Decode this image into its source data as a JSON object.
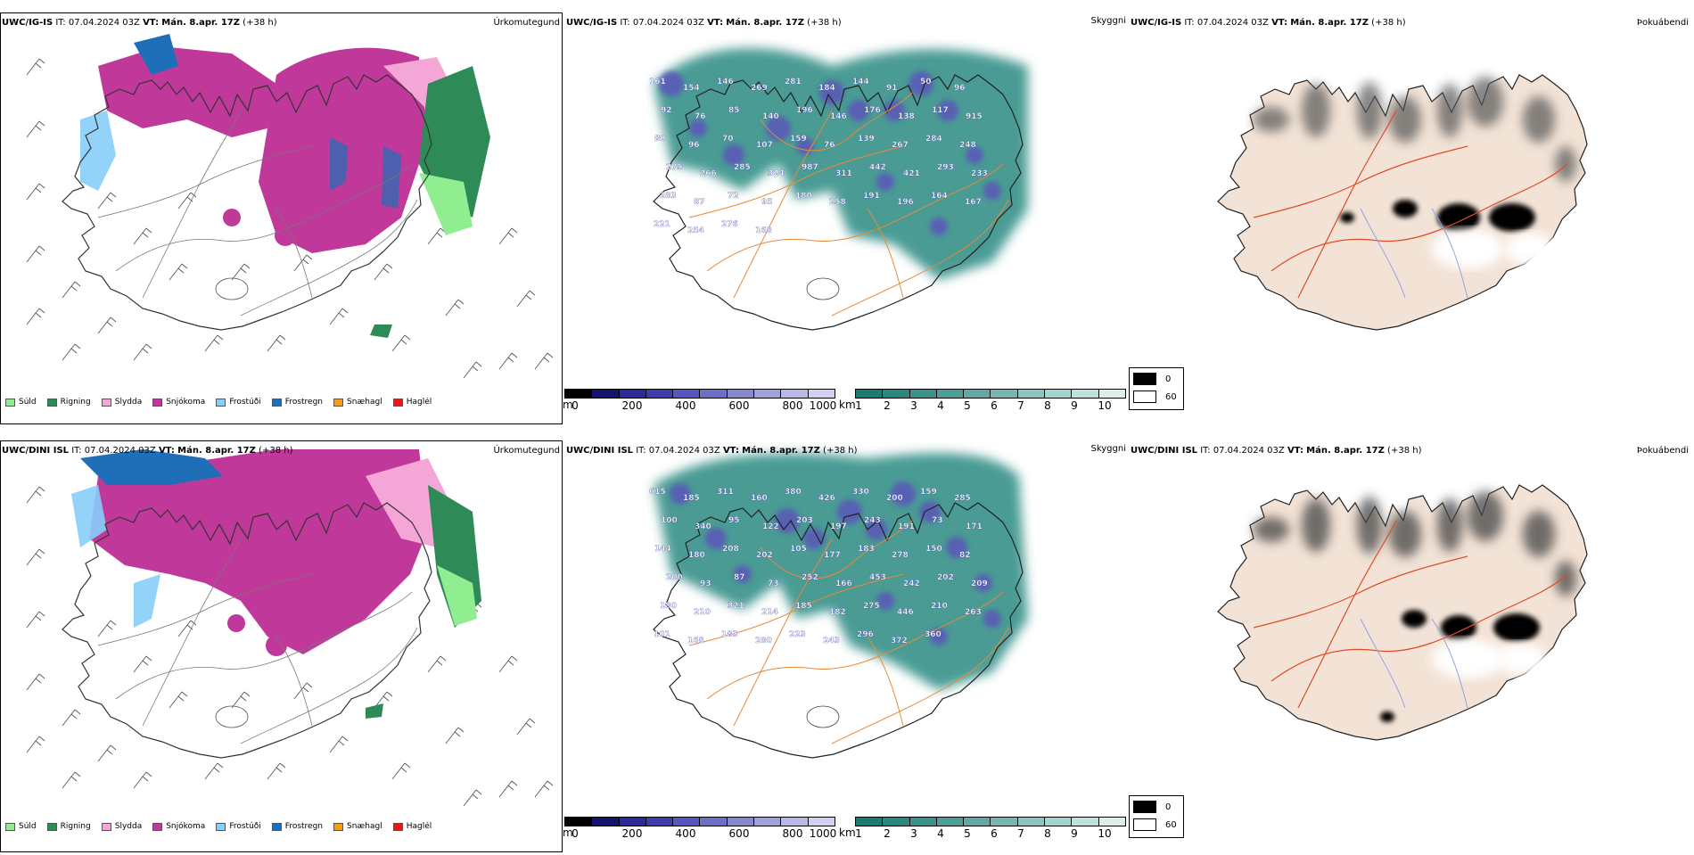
{
  "rows": [
    {
      "model": "UWC/IG-IS",
      "it_label": "IT:",
      "it_value": "07.04.2024 03Z",
      "vt_label": "VT:",
      "vt_value": "Mán. 8.apr. 17Z",
      "lead": "(+38 h)",
      "labels_cloud": [
        "161",
        "154",
        "146",
        "269",
        "281",
        "184",
        "144",
        "91",
        "50",
        "96",
        "92",
        "76",
        "85",
        "140",
        "196",
        "146",
        "176",
        "138",
        "117",
        "915",
        "80",
        "96",
        "70",
        "107",
        "159",
        "76",
        "139",
        "267",
        "284",
        "248",
        "275",
        "266",
        "285",
        "324",
        "987",
        "311",
        "442",
        "421",
        "293",
        "233",
        "283",
        "87",
        "72",
        "95",
        "180",
        "258",
        "191",
        "196",
        "164",
        "167",
        "221",
        "254",
        "276",
        "168"
      ]
    },
    {
      "model": "UWC/DINI ISL",
      "it_label": "IT:",
      "it_value": "07.04.2024 03Z",
      "vt_label": "VT:",
      "vt_value": "Mán. 8.apr. 17Z",
      "lead": "(+38 h)",
      "labels_cloud": [
        "615",
        "185",
        "311",
        "160",
        "380",
        "426",
        "330",
        "200",
        "159",
        "285",
        "100",
        "340",
        "95",
        "122",
        "203",
        "197",
        "243",
        "191",
        "73",
        "171",
        "144",
        "180",
        "208",
        "202",
        "105",
        "177",
        "183",
        "278",
        "150",
        "82",
        "200",
        "93",
        "87",
        "73",
        "252",
        "166",
        "453",
        "242",
        "202",
        "209",
        "180",
        "210",
        "321",
        "214",
        "185",
        "182",
        "275",
        "446",
        "210",
        "263",
        "101",
        "168",
        "183",
        "280",
        "223",
        "243",
        "296",
        "372",
        "360"
      ]
    }
  ],
  "fields": {
    "precip": "Úrkomutegund",
    "cloud": "Skyggni",
    "fog": "Þokuábendi"
  },
  "precip_legend": [
    {
      "label": "Súld",
      "color": "#90ee90"
    },
    {
      "label": "Rigning",
      "color": "#2e8b57"
    },
    {
      "label": "Slydda",
      "color": "#f4a6d7"
    },
    {
      "label": "Snjókoma",
      "color": "#c0399a"
    },
    {
      "label": "Frostúði",
      "color": "#87cefa"
    },
    {
      "label": "Frostregn",
      "color": "#1f6fb8"
    },
    {
      "label": "Snæhagl",
      "color": "#f39c1e"
    },
    {
      "label": "Haglél",
      "color": "#e31a1c"
    }
  ],
  "colorbar_m": {
    "unit": "m",
    "ticks": [
      "0",
      "200",
      "400",
      "600",
      "800",
      "1000"
    ],
    "colors": [
      "#000000",
      "#14146e",
      "#2a2a9a",
      "#3d3db0",
      "#5656be",
      "#6e6ec8",
      "#8787d2",
      "#a0a0dc",
      "#b9b9e6",
      "#d2d2f0"
    ]
  },
  "colorbar_km": {
    "unit": "km",
    "ticks": [
      "1",
      "2",
      "3",
      "4",
      "5",
      "6",
      "7",
      "8",
      "9",
      "10"
    ],
    "colors": [
      "#1b7a74",
      "#2a8680",
      "#3a928c",
      "#4c9e98",
      "#60aaa5",
      "#76b7b2",
      "#8dc4c0",
      "#a6d2ce",
      "#c0e0dd",
      "#dcefed"
    ]
  },
  "fog_legend": [
    {
      "label": "0",
      "color": "#000000"
    },
    {
      "label": "60",
      "color": "#ffffff"
    }
  ],
  "colors": {
    "snow": "#c0399a",
    "sleet": "#f4a6d7",
    "rain": "#2e8b57",
    "drizzle": "#90ee90",
    "frzdrizzle": "#87cefa",
    "frzrain": "#1f6fb8",
    "teal": "#2a8a82",
    "road": "#e8893a",
    "land": "#f3e3d6",
    "fogroad": "#e34a2a",
    "river": "#8da3ea"
  }
}
